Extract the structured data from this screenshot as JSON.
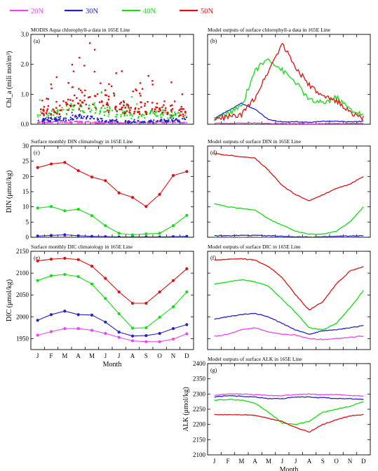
{
  "legend": [
    {
      "name": "20N",
      "color": "#ee44ee"
    },
    {
      "name": "30N",
      "color": "#2222cc"
    },
    {
      "name": "40N",
      "color": "#11dd11"
    },
    {
      "name": "50N",
      "color": "#dd1111"
    }
  ],
  "months": [
    "J",
    "F",
    "M",
    "A",
    "M",
    "J",
    "J",
    "A",
    "S",
    "O",
    "N",
    "D"
  ],
  "xlabel": "Month",
  "chart_data": [
    {
      "id": "a",
      "type": "scatter",
      "label": "(a)",
      "title": "MODIS Aqua chlorophyll-a data in 165E Line",
      "ylabel": "Chl_a (mili mol/m³)",
      "ylim": [
        0,
        3.0
      ],
      "yticks": [
        0,
        1.0,
        2.0,
        3.0
      ],
      "series": [
        {
          "name": "20N",
          "baseline": [
            0.06,
            0.07,
            0.07,
            0.07,
            0.06,
            0.05,
            0.05,
            0.05,
            0.05,
            0.06,
            0.06,
            0.06
          ]
        },
        {
          "name": "30N",
          "baseline": [
            0.14,
            0.16,
            0.2,
            0.24,
            0.2,
            0.12,
            0.09,
            0.08,
            0.09,
            0.11,
            0.13,
            0.13
          ]
        },
        {
          "name": "40N",
          "baseline": [
            0.3,
            0.35,
            0.45,
            0.55,
            0.55,
            0.45,
            0.35,
            0.3,
            0.32,
            0.35,
            0.32,
            0.3
          ]
        },
        {
          "name": "50N",
          "baseline": [
            0.4,
            0.45,
            0.6,
            0.8,
            0.85,
            0.7,
            0.55,
            0.55,
            0.55,
            0.5,
            0.45,
            0.4
          ]
        }
      ]
    },
    {
      "id": "b",
      "type": "line",
      "label": "(b)",
      "title": "Model outputs of surface chlorophyll-a data in 165E Line",
      "ylim": [
        0,
        3.0
      ],
      "yticks": [
        0,
        1.0,
        2.0,
        3.0
      ],
      "series": [
        {
          "name": "20N",
          "values": [
            0.03,
            0.03,
            0.04,
            0.04,
            0.03,
            0.02,
            0.02,
            0.02,
            0.02,
            0.03,
            0.03,
            0.03
          ]
        },
        {
          "name": "30N",
          "values": [
            0.2,
            0.45,
            0.7,
            0.5,
            0.15,
            0.08,
            0.08,
            0.06,
            0.1,
            0.1,
            0.08,
            0.1
          ]
        },
        {
          "name": "40N",
          "values": [
            0.15,
            0.35,
            0.6,
            1.8,
            2.2,
            1.8,
            1.4,
            0.8,
            0.7,
            0.9,
            0.5,
            0.3
          ]
        },
        {
          "name": "50N",
          "values": [
            0.15,
            0.25,
            0.3,
            0.9,
            1.8,
            2.7,
            1.9,
            1.3,
            0.9,
            0.8,
            0.4,
            0.2
          ]
        }
      ]
    },
    {
      "id": "c",
      "type": "line",
      "label": "(c)",
      "title": "Surface monthly DIN climatology in 165E Line",
      "ylabel": "DIN (μmol/kg)",
      "ylim": [
        0,
        30
      ],
      "yticks": [
        0,
        5,
        10,
        15,
        20,
        25,
        30
      ],
      "series": [
        {
          "name": "20N",
          "values": [
            0.1,
            0.1,
            0.1,
            0.1,
            0.1,
            0.1,
            0.1,
            0.1,
            0.1,
            0.1,
            0.1,
            0.1
          ]
        },
        {
          "name": "30N",
          "values": [
            0.4,
            0.6,
            0.8,
            0.5,
            0.3,
            0.2,
            0.1,
            0.1,
            0.1,
            0.1,
            0.2,
            0.3
          ]
        },
        {
          "name": "40N",
          "values": [
            9.6,
            10.1,
            8.7,
            9.2,
            7.1,
            3.8,
            1.3,
            0.8,
            1.1,
            1.3,
            3.8,
            7.2
          ]
        },
        {
          "name": "50N",
          "values": [
            22.9,
            24.1,
            24.6,
            21.9,
            19.8,
            18.6,
            14.6,
            13.1,
            10.1,
            14.1,
            20.3,
            21.6
          ]
        }
      ]
    },
    {
      "id": "d",
      "type": "line",
      "label": "(d)",
      "title": "Model outputs of surface DIN in 165E Line",
      "ylim": [
        0,
        30
      ],
      "yticks": [
        0,
        5,
        10,
        15,
        20,
        25,
        30
      ],
      "series": [
        {
          "name": "20N",
          "values": [
            0,
            0,
            0,
            0,
            0,
            0,
            0,
            0,
            0,
            0,
            0,
            0
          ]
        },
        {
          "name": "30N",
          "values": [
            0.5,
            0.5,
            0.6,
            0.6,
            0.5,
            0.3,
            0.2,
            0.1,
            0.1,
            0.3,
            0.4,
            0.5
          ]
        },
        {
          "name": "40N",
          "values": [
            11,
            10,
            9.5,
            9,
            6,
            4,
            2,
            1,
            1,
            2,
            5,
            10
          ]
        },
        {
          "name": "50N",
          "values": [
            27.5,
            27,
            26.5,
            26,
            22,
            17,
            14,
            12,
            14,
            16,
            17.5,
            20
          ]
        }
      ]
    },
    {
      "id": "e",
      "type": "line",
      "label": "(e)",
      "title": "Surface monthly DIC climatology in 165E Line",
      "ylabel": "DIC (μmol/kg)",
      "ylim": [
        1925,
        2150
      ],
      "yticks": [
        1950,
        2000,
        2050,
        2100,
        2150
      ],
      "series": [
        {
          "name": "20N",
          "values": [
            1958,
            1966,
            1973,
            1973,
            1969,
            1962,
            1953,
            1945,
            1943,
            1943,
            1949,
            1961
          ]
        },
        {
          "name": "30N",
          "values": [
            1992,
            2005,
            2013,
            2005,
            2004,
            1988,
            1965,
            1956,
            1957,
            1962,
            1973,
            1982
          ]
        },
        {
          "name": "40N",
          "values": [
            2083,
            2094,
            2097,
            2092,
            2075,
            2042,
            2007,
            1974,
            1975,
            1999,
            2023,
            2057
          ]
        },
        {
          "name": "50N",
          "values": [
            2128,
            2132,
            2134,
            2131,
            2116,
            2088,
            2057,
            2031,
            2031,
            2057,
            2083,
            2110
          ]
        }
      ]
    },
    {
      "id": "f",
      "type": "line",
      "label": "(f)",
      "title": "Model outputs of surface DIC in 165E Line",
      "ylim": [
        1925,
        2150
      ],
      "yticks": [
        1950,
        2000,
        2050,
        2100,
        2150
      ],
      "series": [
        {
          "name": "20N",
          "values": [
            1955,
            1960,
            1970,
            1975,
            1965,
            1960,
            1958,
            1950,
            1948,
            1950,
            1953,
            1956
          ]
        },
        {
          "name": "30N",
          "values": [
            1995,
            2000,
            2005,
            2008,
            2000,
            1985,
            1970,
            1960,
            1968,
            1970,
            1975,
            1980
          ]
        },
        {
          "name": "40N",
          "values": [
            2075,
            2080,
            2085,
            2080,
            2070,
            2040,
            2010,
            1975,
            1970,
            1985,
            2020,
            2060
          ]
        },
        {
          "name": "50N",
          "values": [
            2130,
            2132,
            2133,
            2130,
            2115,
            2090,
            2050,
            2015,
            2035,
            2075,
            2105,
            2115
          ]
        }
      ]
    },
    {
      "id": "g",
      "type": "line",
      "label": "(g)",
      "title": "Model outputs of surface ALK in 165E Line",
      "ylabel": "ALK (μmol/kg)",
      "ylim": [
        2100,
        2400
      ],
      "yticks": [
        2100,
        2150,
        2200,
        2250,
        2300,
        2350,
        2400
      ],
      "series": [
        {
          "name": "20N",
          "values": [
            2295,
            2300,
            2300,
            2298,
            2295,
            2295,
            2298,
            2300,
            2298,
            2298,
            2295,
            2293
          ]
        },
        {
          "name": "30N",
          "values": [
            2290,
            2295,
            2292,
            2290,
            2285,
            2285,
            2290,
            2290,
            2288,
            2285,
            2285,
            2282
          ]
        },
        {
          "name": "40N",
          "values": [
            2280,
            2282,
            2280,
            2270,
            2240,
            2205,
            2200,
            2210,
            2240,
            2250,
            2260,
            2275
          ]
        },
        {
          "name": "50N",
          "values": [
            2232,
            2232,
            2232,
            2230,
            2220,
            2210,
            2190,
            2175,
            2200,
            2215,
            2228,
            2232
          ]
        }
      ]
    }
  ]
}
